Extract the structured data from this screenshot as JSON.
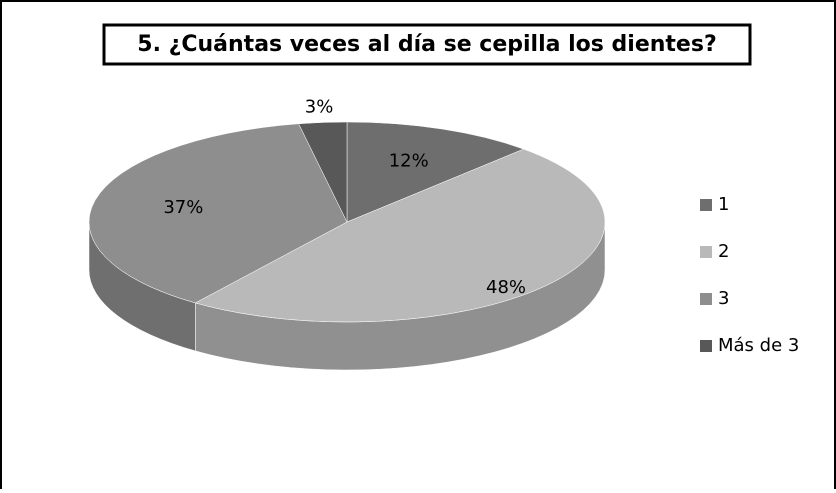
{
  "chart_data": {
    "type": "pie3d",
    "title": "5. ¿Cuántas veces al día se cepilla los dientes?",
    "categories": [
      "1",
      "2",
      "3",
      "Más de 3"
    ],
    "values": [
      12,
      48,
      37,
      3
    ],
    "value_labels": [
      "12%",
      "48%",
      "37%",
      "3%"
    ],
    "colors": [
      "#6e6e6e",
      "#b9b9b9",
      "#8e8e8e",
      "#585858"
    ],
    "legend": "right"
  }
}
